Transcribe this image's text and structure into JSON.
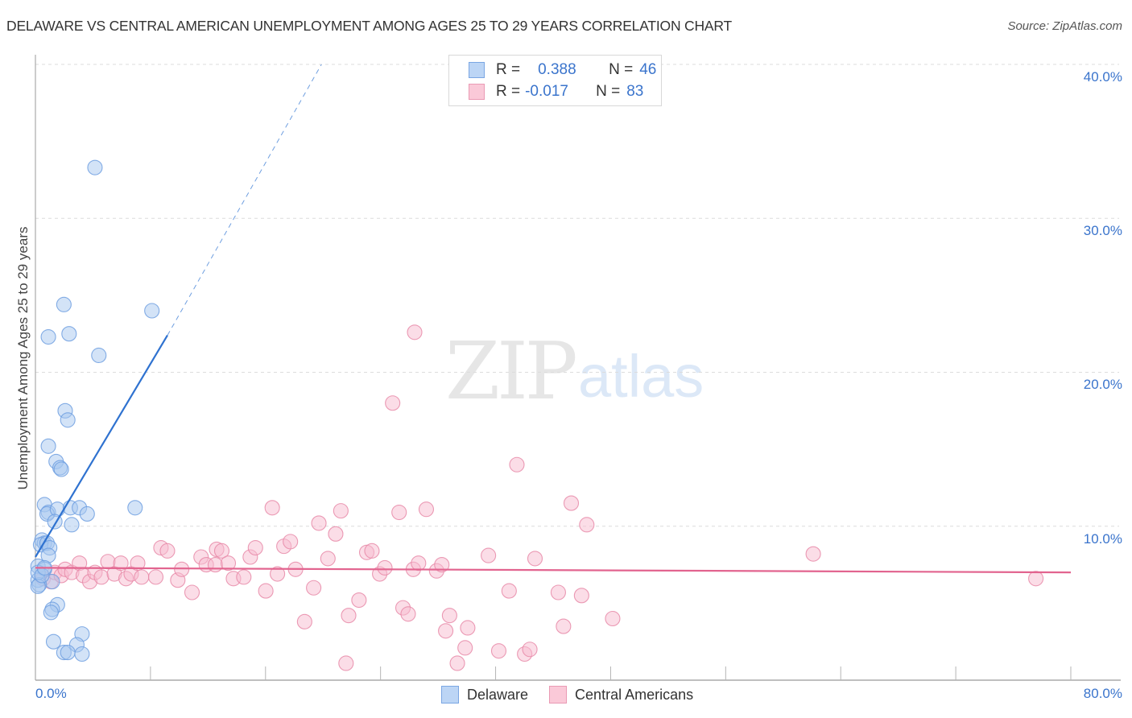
{
  "header": {
    "title": "DELAWARE VS CENTRAL AMERICAN UNEMPLOYMENT AMONG AGES 25 TO 29 YEARS CORRELATION CHART",
    "source": "Source: ZipAtlas.com"
  },
  "legend_top": {
    "rows": [
      {
        "r_label": "R =",
        "r_value": "0.388",
        "n_label": "N =",
        "n_value": "46",
        "color": "#a8c8f0"
      },
      {
        "r_label": "R =",
        "r_value": "-0.017",
        "n_label": "N =",
        "n_value": "83",
        "color": "#f8bcd0"
      }
    ]
  },
  "legend_bottom": {
    "items": [
      {
        "label": "Delaware",
        "color": "#a8c8f0"
      },
      {
        "label": "Central Americans",
        "color": "#f8bcd0"
      }
    ]
  },
  "watermark": {
    "zip": "ZIP",
    "atlas": "atlas"
  },
  "axes": {
    "ylabel": "Unemployment Among Ages 25 to 29 years",
    "y_ticks": [
      "40.0%",
      "30.0%",
      "20.0%",
      "10.0%"
    ],
    "x_ticks": [
      "0.0%",
      "80.0%"
    ]
  },
  "chart_data": {
    "type": "scatter",
    "title": "DELAWARE VS CENTRAL AMERICAN UNEMPLOYMENT AMONG AGES 25 TO 29 YEARS CORRELATION CHART",
    "xlabel": "",
    "ylabel": "Unemployment Among Ages 25 to 29 years",
    "xlim": [
      0,
      80
    ],
    "ylim": [
      0,
      40
    ],
    "grid": true,
    "legend_position": "top-center",
    "series": [
      {
        "name": "Delaware",
        "color": "#6e9fe0",
        "fill": "#a8c8f0",
        "R": 0.388,
        "N": 46,
        "trend": {
          "x0": 0,
          "y0": 8.0,
          "x1": 10.2,
          "y1": 22.4,
          "dashed_to": [
            22.1,
            40.0
          ]
        },
        "points": [
          [
            4.6,
            33.3
          ],
          [
            2.2,
            24.4
          ],
          [
            9.0,
            24.0
          ],
          [
            1.0,
            22.3
          ],
          [
            2.6,
            22.5
          ],
          [
            4.9,
            21.1
          ],
          [
            2.3,
            17.5
          ],
          [
            2.5,
            16.9
          ],
          [
            1.0,
            15.2
          ],
          [
            1.6,
            14.2
          ],
          [
            1.9,
            13.8
          ],
          [
            2.0,
            13.7
          ],
          [
            0.7,
            11.4
          ],
          [
            1.0,
            10.9
          ],
          [
            0.9,
            10.8
          ],
          [
            1.7,
            11.1
          ],
          [
            2.7,
            11.2
          ],
          [
            3.4,
            11.2
          ],
          [
            4.0,
            10.8
          ],
          [
            7.7,
            11.2
          ],
          [
            2.8,
            10.1
          ],
          [
            1.5,
            10.3
          ],
          [
            0.5,
            9.1
          ],
          [
            0.7,
            8.9
          ],
          [
            0.4,
            8.8
          ],
          [
            0.9,
            8.9
          ],
          [
            1.1,
            8.6
          ],
          [
            1.0,
            8.1
          ],
          [
            0.2,
            7.4
          ],
          [
            0.7,
            7.2
          ],
          [
            0.2,
            6.5
          ],
          [
            1.3,
            6.4
          ],
          [
            0.3,
            6.2
          ],
          [
            0.2,
            6.1
          ],
          [
            1.7,
            4.9
          ],
          [
            1.3,
            4.6
          ],
          [
            1.2,
            4.4
          ],
          [
            3.6,
            3.0
          ],
          [
            1.4,
            2.5
          ],
          [
            3.2,
            2.3
          ],
          [
            2.2,
            1.8
          ],
          [
            2.5,
            1.8
          ],
          [
            3.6,
            1.7
          ],
          [
            0.2,
            7.0
          ],
          [
            0.5,
            6.8
          ],
          [
            0.7,
            7.3
          ]
        ]
      },
      {
        "name": "Central Americans",
        "color": "#e88aa8",
        "fill": "#f8bcd0",
        "R": -0.017,
        "N": 83,
        "trend": {
          "x0": 0,
          "y0": 7.3,
          "x1": 80,
          "y1": 7.0
        },
        "points": [
          [
            0.6,
            6.6
          ],
          [
            1.2,
            6.4
          ],
          [
            1.5,
            7.0
          ],
          [
            2.0,
            6.8
          ],
          [
            2.3,
            7.2
          ],
          [
            2.8,
            7.0
          ],
          [
            3.4,
            7.6
          ],
          [
            3.7,
            6.8
          ],
          [
            4.2,
            6.4
          ],
          [
            4.6,
            7.0
          ],
          [
            5.1,
            6.7
          ],
          [
            5.6,
            7.7
          ],
          [
            6.1,
            6.9
          ],
          [
            6.6,
            7.6
          ],
          [
            7.0,
            6.6
          ],
          [
            7.4,
            6.9
          ],
          [
            7.9,
            7.6
          ],
          [
            8.2,
            6.7
          ],
          [
            9.3,
            6.7
          ],
          [
            9.7,
            8.6
          ],
          [
            10.2,
            8.4
          ],
          [
            11.0,
            6.5
          ],
          [
            11.3,
            7.2
          ],
          [
            12.1,
            5.7
          ],
          [
            12.8,
            8.0
          ],
          [
            13.2,
            7.5
          ],
          [
            13.9,
            7.5
          ],
          [
            14.0,
            8.5
          ],
          [
            14.4,
            8.4
          ],
          [
            14.9,
            7.6
          ],
          [
            15.3,
            6.6
          ],
          [
            16.1,
            6.7
          ],
          [
            16.6,
            8.0
          ],
          [
            17.0,
            8.6
          ],
          [
            17.8,
            5.8
          ],
          [
            18.3,
            11.2
          ],
          [
            18.7,
            6.9
          ],
          [
            19.2,
            8.7
          ],
          [
            19.7,
            9.0
          ],
          [
            20.1,
            7.2
          ],
          [
            20.8,
            3.8
          ],
          [
            21.5,
            6.0
          ],
          [
            21.9,
            10.2
          ],
          [
            22.6,
            7.9
          ],
          [
            23.2,
            9.5
          ],
          [
            23.6,
            11.0
          ],
          [
            24.0,
            1.1
          ],
          [
            24.2,
            4.2
          ],
          [
            25.0,
            5.2
          ],
          [
            25.6,
            8.3
          ],
          [
            26.0,
            8.4
          ],
          [
            26.6,
            6.9
          ],
          [
            27.0,
            7.3
          ],
          [
            27.6,
            18.0
          ],
          [
            28.1,
            10.9
          ],
          [
            28.4,
            4.7
          ],
          [
            28.8,
            4.3
          ],
          [
            29.2,
            7.2
          ],
          [
            29.6,
            7.6
          ],
          [
            30.2,
            11.1
          ],
          [
            31.0,
            7.1
          ],
          [
            31.4,
            7.5
          ],
          [
            31.7,
            3.2
          ],
          [
            32.0,
            4.2
          ],
          [
            32.6,
            1.1
          ],
          [
            33.2,
            2.1
          ],
          [
            33.4,
            3.4
          ],
          [
            35.0,
            8.1
          ],
          [
            35.8,
            1.9
          ],
          [
            36.6,
            5.8
          ],
          [
            37.2,
            14.0
          ],
          [
            37.8,
            1.7
          ],
          [
            38.2,
            2.0
          ],
          [
            38.6,
            7.9
          ],
          [
            40.4,
            5.7
          ],
          [
            40.8,
            3.5
          ],
          [
            41.4,
            11.5
          ],
          [
            42.2,
            5.5
          ],
          [
            42.6,
            10.1
          ],
          [
            44.6,
            4.0
          ],
          [
            60.1,
            8.2
          ],
          [
            77.3,
            6.6
          ],
          [
            29.3,
            22.6
          ]
        ]
      }
    ]
  }
}
